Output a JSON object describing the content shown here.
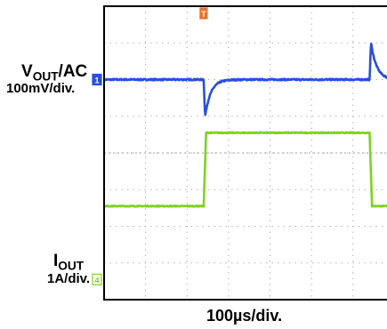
{
  "labels": {
    "vout_name": "V",
    "vout_sub": "OUT",
    "vout_suffix": "/AC",
    "vout_scale": "100mV/div.",
    "iout_name": "I",
    "iout_sub": "OUT",
    "iout_scale": "1A/div.",
    "time_scale": "100µs/div."
  },
  "markers": {
    "ch1": "1",
    "ch4": "4",
    "trigger": "T"
  },
  "colors": {
    "vout": "#2b4fd9",
    "iout": "#7ed321",
    "trigger": "#e8732a",
    "grid": "#b4b4b4",
    "frame": "#000000"
  },
  "chart_data": {
    "type": "line",
    "xlabel": "100µs/div.",
    "grid": true,
    "divisions": {
      "x": 8,
      "y": 8
    },
    "xlim": [
      0,
      8
    ],
    "ylim": [
      0,
      8
    ],
    "trigger_x_div": 2.4,
    "series": [
      {
        "name": "VOUT/AC",
        "scale": "100mV/div.",
        "baseline_div": 6.0,
        "transients": [
          {
            "t_div": 2.4,
            "peak_div": -1.0,
            "decay_div": 0.55
          },
          {
            "t_div": 6.4,
            "peak_div": 1.0,
            "decay_div": 0.55
          }
        ]
      },
      {
        "name": "IOUT",
        "scale": "1A/div.",
        "low_div": 2.55,
        "high_div": 4.55,
        "rise_div": 2.4,
        "fall_div": 6.4,
        "edge_div": 0.06
      }
    ]
  }
}
